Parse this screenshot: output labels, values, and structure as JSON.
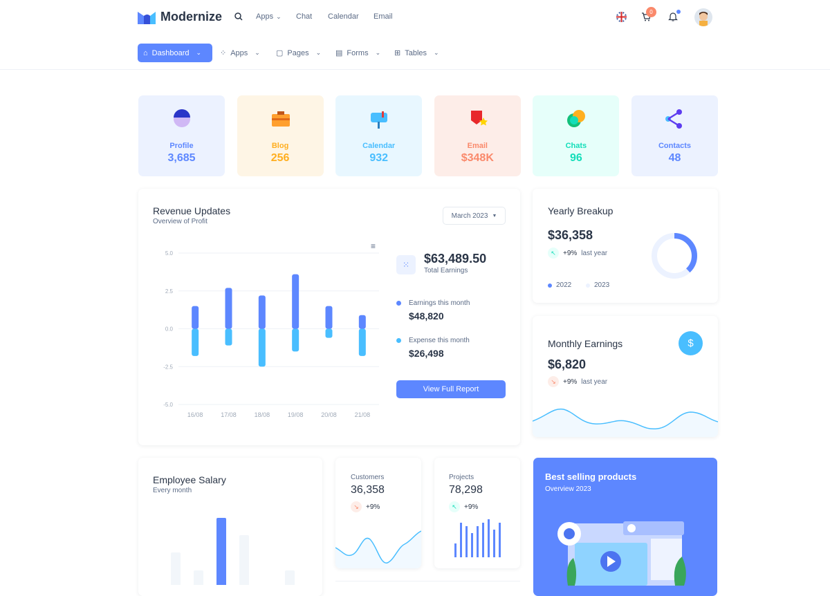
{
  "brand": {
    "name": "Modernize"
  },
  "topbar": {
    "links": [
      "Apps",
      "Chat",
      "Calendar",
      "Email"
    ],
    "cart_count": "0",
    "icons": [
      "search-icon",
      "uk-flag-icon",
      "cart-icon",
      "bell-icon",
      "avatar"
    ]
  },
  "nav": {
    "items": [
      {
        "label": "Dashboard",
        "icon": "home-icon",
        "active": true
      },
      {
        "label": "Apps",
        "icon": "apps-icon"
      },
      {
        "label": "Pages",
        "icon": "clipboard-icon"
      },
      {
        "label": "Forms",
        "icon": "file-icon"
      },
      {
        "label": "Tables",
        "icon": "table-icon"
      }
    ]
  },
  "stats": [
    {
      "label": "Profile",
      "value": "3,685",
      "bg": "#ecf2ff",
      "color": "#5d87ff"
    },
    {
      "label": "Blog",
      "value": "256",
      "bg": "#fef5e5",
      "color": "#ffae1f"
    },
    {
      "label": "Calendar",
      "value": "932",
      "bg": "#e8f7ff",
      "color": "#49beff"
    },
    {
      "label": "Email",
      "value": "$348K",
      "bg": "#fdede8",
      "color": "#fa896b"
    },
    {
      "label": "Chats",
      "value": "96",
      "bg": "#e6fffa",
      "color": "#13deb9"
    },
    {
      "label": "Contacts",
      "value": "48",
      "bg": "#ecf2ff",
      "color": "#5d87ff"
    }
  ],
  "revenue": {
    "title": "Revenue Updates",
    "subtitle": "Overview of Profit",
    "month": "March 2023",
    "total": "$63,489.50",
    "total_label": "Total Earnings",
    "earn_label": "Earnings this month",
    "earn_value": "$48,820",
    "exp_label": "Expense this month",
    "exp_value": "$26,498",
    "button": "View Full Report"
  },
  "chart_data": {
    "type": "bar",
    "categories": [
      "16/08",
      "17/08",
      "18/08",
      "19/08",
      "20/08",
      "21/08"
    ],
    "series": [
      {
        "values": [
          1.5,
          2.7,
          2.2,
          3.6,
          1.5,
          0.9
        ],
        "color": "#5d87ff"
      },
      {
        "values": [
          -1.8,
          -1.1,
          -2.5,
          -1.5,
          -0.6,
          -1.8
        ],
        "color": "#49beff"
      }
    ],
    "yticks": [
      "5.0",
      "2.5",
      "0.0",
      "-2.5",
      "-5.0"
    ],
    "ylim": [
      -5,
      5
    ],
    "grid": true,
    "stacked": true
  },
  "yearly": {
    "title": "Yearly Breakup",
    "value": "$36,358",
    "change": "+9%",
    "period": "last year",
    "legend": [
      "2022",
      "2023"
    ],
    "share_2022": 0.38
  },
  "monthly": {
    "title": "Monthly Earnings",
    "value": "$6,820",
    "change": "+9%",
    "period": "last year"
  },
  "salary": {
    "title": "Employee Salary",
    "subtitle": "Every month",
    "values": [
      47,
      21,
      97,
      72,
      0,
      21
    ]
  },
  "customers": {
    "label": "Customers",
    "value": "36,358",
    "change": "+9%"
  },
  "projects": {
    "label": "Projects",
    "value": "78,298",
    "change": "+9%",
    "values": [
      4,
      10,
      9,
      7,
      9,
      10,
      11,
      8,
      10
    ]
  },
  "best": {
    "title": "Best selling products",
    "subtitle": "Overview 2023"
  }
}
